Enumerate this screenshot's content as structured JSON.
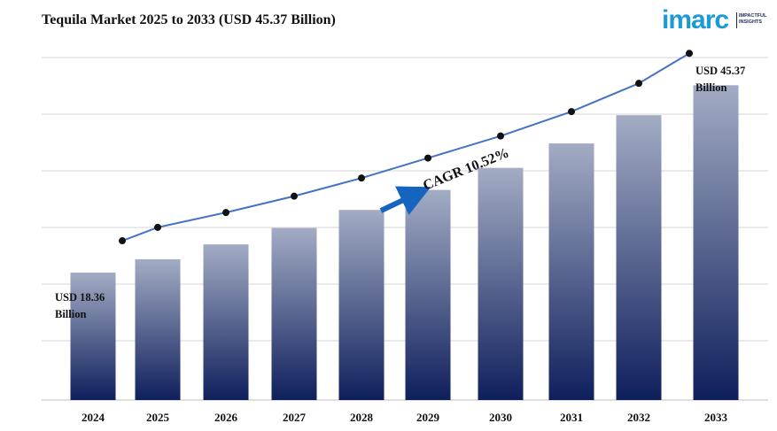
{
  "header": {
    "title": "Tequila Market 2025 to 2033 (USD 45.37 Billion)"
  },
  "logo": {
    "word": "imarc",
    "tag_line1": "IMPACTFUL",
    "tag_line2": "INSIGHTS",
    "color": "#1c9ad6"
  },
  "chart_data": {
    "type": "bar",
    "categories": [
      "2024",
      "2025",
      "2026",
      "2027",
      "2028",
      "2029",
      "2030",
      "2031",
      "2032",
      "2033"
    ],
    "values": [
      18.36,
      20.29,
      22.43,
      24.79,
      27.4,
      30.28,
      33.46,
      36.98,
      41.05,
      45.37
    ],
    "line_values": [
      18.36,
      20.29,
      22.43,
      24.79,
      27.4,
      30.28,
      33.46,
      36.98,
      41.05,
      45.37
    ],
    "ylim": [
      0,
      50
    ],
    "grid": true,
    "annotations": {
      "start_line1": "USD 18.36",
      "start_line2": "Billion",
      "end_line1": "USD 45.37",
      "end_line2": "Billion",
      "cagr": "CAGR 10.52%"
    },
    "colors": {
      "bar_top": "#a3acc4",
      "bar_bottom": "#0f1f5c",
      "line": "#4472c4",
      "marker": "#111111",
      "arrow": "#1565c0",
      "grid": "#d4d4d4"
    }
  }
}
